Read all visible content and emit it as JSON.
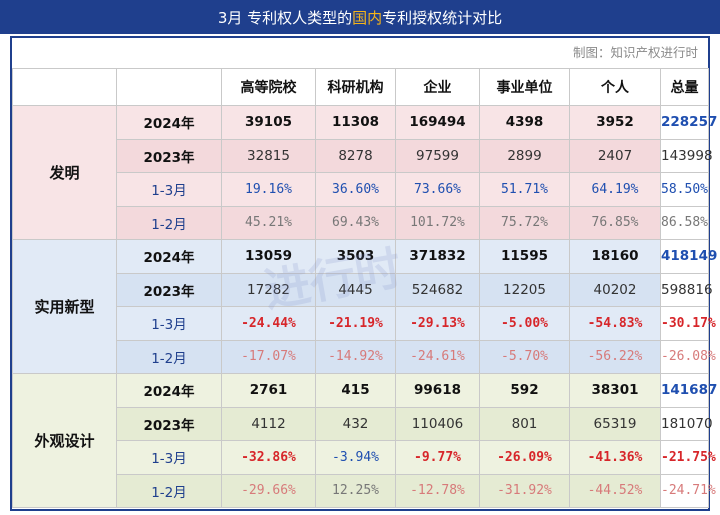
{
  "title": {
    "prefix": "3月  专利权人类型的",
    "highlight": "国内",
    "suffix": "专利授权统计对比"
  },
  "credit": "制图：知识产权进行时",
  "watermark": "进行时",
  "columns": [
    "高等院校",
    "科研机构",
    "企业",
    "事业单位",
    "个人",
    "总量"
  ],
  "colors": {
    "header_bg": "#1f3f8d",
    "highlight": "#f5b41a",
    "positive": "#1f4fb0",
    "negative": "#d7262a",
    "invention_bg": "#f8e4e6",
    "utility_bg": "#e1eaf6",
    "design_bg": "#eef2e0"
  },
  "sections": [
    {
      "name": "发明",
      "rows": [
        {
          "label": "2024年",
          "values": [
            "39105",
            "11308",
            "169494",
            "4398",
            "3952",
            "228257"
          ]
        },
        {
          "label": "2023年",
          "values": [
            "32815",
            "8278",
            "97599",
            "2899",
            "2407",
            "143998"
          ]
        },
        {
          "label": "1-3月",
          "values": [
            "19.16%",
            "36.60%",
            "73.66%",
            "51.71%",
            "64.19%",
            "58.50%"
          ]
        },
        {
          "label": "1-2月",
          "values": [
            "45.21%",
            "69.43%",
            "101.72%",
            "75.72%",
            "76.85%",
            "86.58%"
          ]
        }
      ]
    },
    {
      "name": "实用新型",
      "rows": [
        {
          "label": "2024年",
          "values": [
            "13059",
            "3503",
            "371832",
            "11595",
            "18160",
            "418149"
          ]
        },
        {
          "label": "2023年",
          "values": [
            "17282",
            "4445",
            "524682",
            "12205",
            "40202",
            "598816"
          ]
        },
        {
          "label": "1-3月",
          "values": [
            "-24.44%",
            "-21.19%",
            "-29.13%",
            "-5.00%",
            "-54.83%",
            "-30.17%"
          ]
        },
        {
          "label": "1-2月",
          "values": [
            "-17.07%",
            "-14.92%",
            "-24.61%",
            "-5.70%",
            "-56.22%",
            "-26.08%"
          ]
        }
      ]
    },
    {
      "name": "外观设计",
      "rows": [
        {
          "label": "2024年",
          "values": [
            "2761",
            "415",
            "99618",
            "592",
            "38301",
            "141687"
          ]
        },
        {
          "label": "2023年",
          "values": [
            "4112",
            "432",
            "110406",
            "801",
            "65319",
            "181070"
          ]
        },
        {
          "label": "1-3月",
          "values": [
            "-32.86%",
            "-3.94%",
            "-9.77%",
            "-26.09%",
            "-41.36%",
            "-21.75%"
          ]
        },
        {
          "label": "1-2月",
          "values": [
            "-29.66%",
            "12.25%",
            "-12.78%",
            "-31.92%",
            "-44.52%",
            "-24.71%"
          ]
        }
      ]
    }
  ]
}
